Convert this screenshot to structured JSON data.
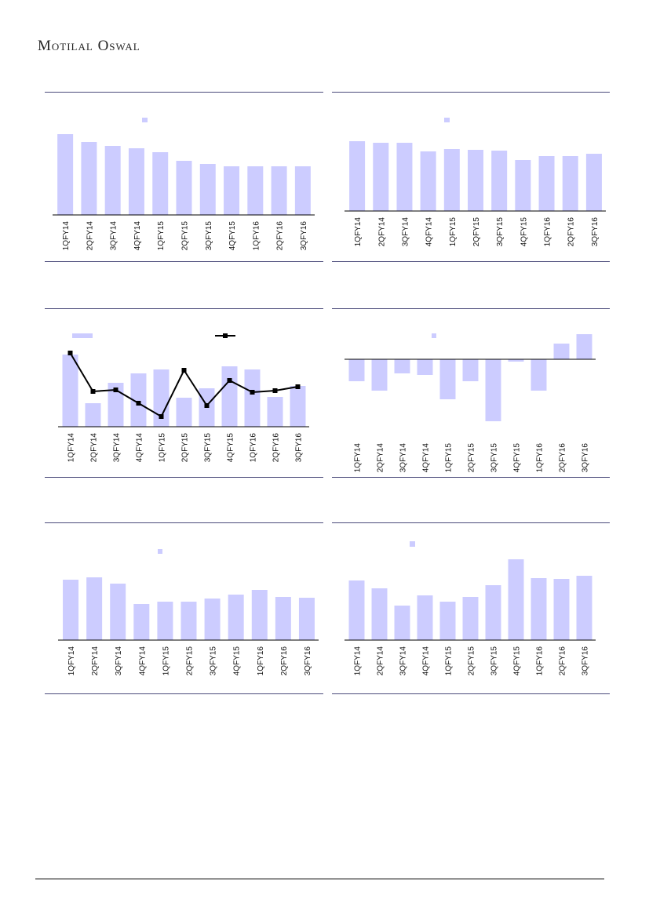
{
  "header": {
    "brand": "Motilal Oswal"
  },
  "chart_data": [
    {
      "type": "bar",
      "categories": [
        "1QFY14",
        "2QFY14",
        "3QFY14",
        "4QFY14",
        "1QFY15",
        "2QFY15",
        "3QFY15",
        "4QFY15",
        "1QFY16",
        "2QFY16",
        "3QFY16"
      ],
      "values": [
        103,
        93,
        88,
        85,
        80,
        69,
        65,
        62,
        62,
        62,
        62
      ],
      "color": "#ccccff",
      "ylim": [
        0,
        110
      ]
    },
    {
      "type": "bar",
      "categories": [
        "1QFY14",
        "2QFY14",
        "3QFY14",
        "4QFY14",
        "1QFY15",
        "2QFY15",
        "3QFY15",
        "4QFY15",
        "1QFY16",
        "2QFY16",
        "3QFY16"
      ],
      "values": [
        89,
        87,
        87,
        76,
        79,
        78,
        77,
        65,
        70,
        70,
        73
      ],
      "color": "#ccccff",
      "ylim": [
        0,
        110
      ]
    },
    {
      "type": "combo",
      "categories": [
        "1QFY14",
        "2QFY14",
        "3QFY14",
        "4QFY14",
        "1QFY15",
        "2QFY15",
        "3QFY15",
        "4QFY15",
        "1QFY16",
        "2QFY16",
        "3QFY16"
      ],
      "series": [
        {
          "type": "bar",
          "color": "#ccccff",
          "values": [
            92,
            30,
            56,
            68,
            73,
            37,
            49,
            77,
            73,
            38,
            52
          ]
        },
        {
          "type": "line",
          "color": "#000000",
          "values": [
            94,
            45,
            47,
            30,
            13,
            72,
            27,
            59,
            44,
            46,
            51
          ]
        }
      ],
      "ylim": [
        0,
        110
      ]
    },
    {
      "type": "bar",
      "categories": [
        "1QFY14",
        "2QFY14",
        "3QFY14",
        "4QFY14",
        "1QFY15",
        "2QFY15",
        "3QFY15",
        "4QFY15",
        "1QFY16",
        "2QFY16",
        "3QFY16"
      ],
      "values": [
        -28,
        -40,
        -18,
        -20,
        -51,
        -28,
        -79,
        -3,
        -40,
        20,
        32
      ],
      "color": "#ccccff",
      "ylim": [
        -90,
        40
      ]
    },
    {
      "type": "bar",
      "categories": [
        "1QFY14",
        "2QFY14",
        "3QFY14",
        "4QFY14",
        "1QFY15",
        "2QFY15",
        "3QFY15",
        "4QFY15",
        "1QFY16",
        "2QFY16",
        "3QFY16"
      ],
      "values": [
        77,
        80,
        72,
        46,
        49,
        49,
        53,
        58,
        64,
        55,
        54
      ],
      "color": "#ccccff",
      "ylim": [
        0,
        110
      ]
    },
    {
      "type": "bar",
      "categories": [
        "1QFY14",
        "2QFY14",
        "3QFY14",
        "4QFY14",
        "1QFY15",
        "2QFY15",
        "3QFY15",
        "4QFY15",
        "1QFY16",
        "2QFY16",
        "3QFY16"
      ],
      "values": [
        76,
        66,
        44,
        57,
        49,
        55,
        70,
        103,
        79,
        78,
        82
      ],
      "color": "#ccccff",
      "ylim": [
        0,
        110
      ]
    }
  ]
}
